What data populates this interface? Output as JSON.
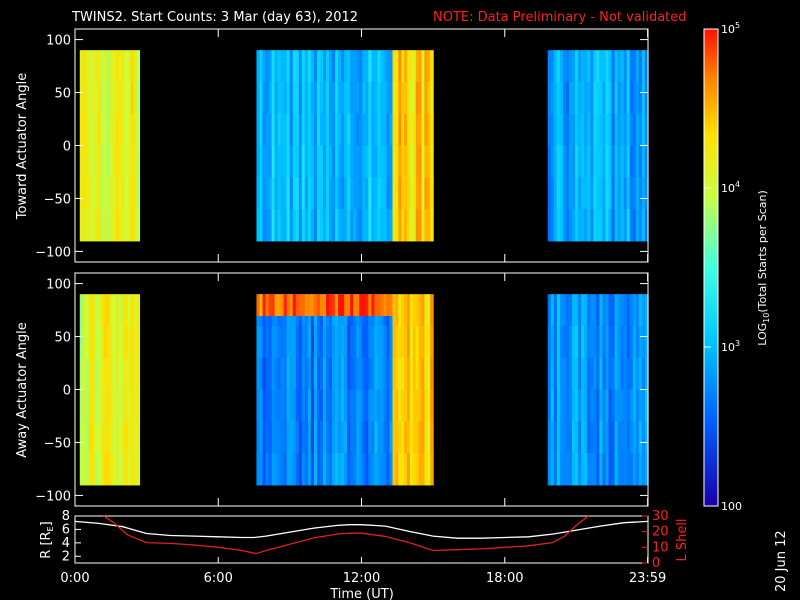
{
  "title": {
    "main": "TWINS2. Start Counts:  3 Mar (day  63), 2012",
    "note": "NOTE: Data Preliminary - Not validated"
  },
  "colors": {
    "background": "#000000",
    "axes": "#ffffff",
    "note": "#ff2020",
    "r_line": "#ffffff",
    "lshell_line": "#e02020"
  },
  "colorbar": {
    "label": "LOG10(Total Starts per Scan)",
    "label_parts": [
      "LOG",
      "10",
      "(Total Starts per Scan)"
    ],
    "ticks": [
      {
        "value": 100,
        "label": "100"
      },
      {
        "value": 1000,
        "label": "10^3",
        "base": "10",
        "exp": "3"
      },
      {
        "value": 10000,
        "label": "10^4",
        "base": "10",
        "exp": "4"
      },
      {
        "value": 100000,
        "label": "10^5",
        "base": "10",
        "exp": "5"
      }
    ],
    "range": [
      100,
      100000
    ],
    "scale": "log"
  },
  "chart_data": [
    {
      "type": "heatmap",
      "title": "Toward Actuator Angle",
      "ylabel": "Toward Actuator Angle",
      "ylim": [
        -110,
        110
      ],
      "yticks": [
        100,
        50,
        0,
        -50,
        -100
      ],
      "ytick_labels": [
        "100",
        "50",
        "0",
        "−50",
        "−100"
      ],
      "angle_range": [
        -90,
        90
      ],
      "time_range_hours": [
        0,
        24
      ],
      "scale": "log",
      "vmin": 100,
      "vmax": 100000,
      "coverage_hours": [
        [
          0.2,
          2.7
        ],
        [
          7.6,
          15.0
        ],
        [
          19.8,
          24.0
        ]
      ],
      "blocks": [
        {
          "t": [
            0.2,
            2.7
          ],
          "level": "yellow-orange",
          "log_value": 4.1
        },
        {
          "t": [
            7.6,
            13.3
          ],
          "level": "cyan-blue",
          "log_value": 3.0
        },
        {
          "t": [
            13.3,
            15.0
          ],
          "level": "orange-red",
          "log_value": 4.4
        },
        {
          "t": [
            19.8,
            24.0
          ],
          "level": "blue",
          "log_value": 2.9
        }
      ]
    },
    {
      "type": "heatmap",
      "title": "Away Actuator Angle",
      "ylabel": "Away Actuator Angle",
      "ylim": [
        -110,
        110
      ],
      "yticks": [
        100,
        50,
        0,
        -50,
        -100
      ],
      "ytick_labels": [
        "100",
        "50",
        "0",
        "−50",
        "−100"
      ],
      "angle_range": [
        -90,
        90
      ],
      "time_range_hours": [
        0,
        24
      ],
      "scale": "log",
      "vmin": 100,
      "vmax": 100000,
      "coverage_hours": [
        [
          0.2,
          2.7
        ],
        [
          7.6,
          15.0
        ],
        [
          19.8,
          24.0
        ]
      ],
      "blocks": [
        {
          "t": [
            0.2,
            2.7
          ],
          "level": "yellow-orange",
          "log_value": 4.1
        },
        {
          "t": [
            7.6,
            13.3
          ],
          "level": "blue",
          "log_value": 2.7
        },
        {
          "t": [
            7.6,
            13.3
          ],
          "angle": [
            70,
            90
          ],
          "level": "red",
          "log_value": 4.8
        },
        {
          "t": [
            13.3,
            15.0
          ],
          "level": "orange-red",
          "log_value": 4.4
        },
        {
          "t": [
            19.8,
            24.0
          ],
          "level": "blue",
          "log_value": 2.8
        }
      ]
    },
    {
      "type": "line",
      "xlabel": "Time (UT)",
      "ylabel_left": "R [RE]",
      "ylabel_left_parts": [
        "R [R",
        "E",
        "]"
      ],
      "ylabel_right": "L Shell",
      "ylim_left": [
        1,
        8
      ],
      "yticks_left": [
        2,
        4,
        6,
        8
      ],
      "ylim_right": [
        0,
        30
      ],
      "yticks_right": [
        0,
        10,
        20,
        30
      ],
      "xlim_hours": [
        0,
        24
      ],
      "xticks_hours": [
        0,
        6,
        12,
        18,
        23.983
      ],
      "xtick_labels": [
        "0:00",
        "6:00",
        "12:00",
        "18:00",
        "23:59"
      ],
      "series": [
        {
          "name": "R",
          "axis": "left",
          "x": [
            0,
            1,
            2,
            3,
            4,
            5,
            6,
            7,
            7.5,
            8,
            9,
            10,
            11,
            11.5,
            12,
            13,
            14,
            15,
            16,
            17,
            18,
            19,
            20,
            21,
            22,
            23,
            24
          ],
          "y": [
            7.2,
            6.9,
            6.4,
            5.4,
            5.1,
            5.0,
            4.9,
            4.8,
            4.8,
            5.0,
            5.6,
            6.2,
            6.6,
            6.7,
            6.7,
            6.5,
            5.7,
            5.0,
            4.7,
            4.7,
            4.8,
            4.9,
            5.3,
            5.9,
            6.5,
            7.0,
            7.2
          ]
        },
        {
          "name": "L Shell",
          "axis": "right",
          "x": [
            1.2,
            1.6,
            2.2,
            3.0,
            4,
            5,
            6,
            7,
            7.6,
            8,
            9,
            10,
            11,
            11.5,
            12,
            13,
            14,
            15,
            16,
            17,
            18,
            19,
            20,
            20.5,
            21,
            21.5
          ],
          "y": [
            30,
            26,
            18,
            13,
            12.5,
            11.5,
            10,
            8,
            6,
            8,
            12,
            16,
            18.5,
            19,
            19,
            17,
            13,
            8,
            8.5,
            9,
            10,
            11,
            13,
            17,
            24,
            30
          ]
        }
      ]
    }
  ],
  "side_label": "20 Jun 12"
}
